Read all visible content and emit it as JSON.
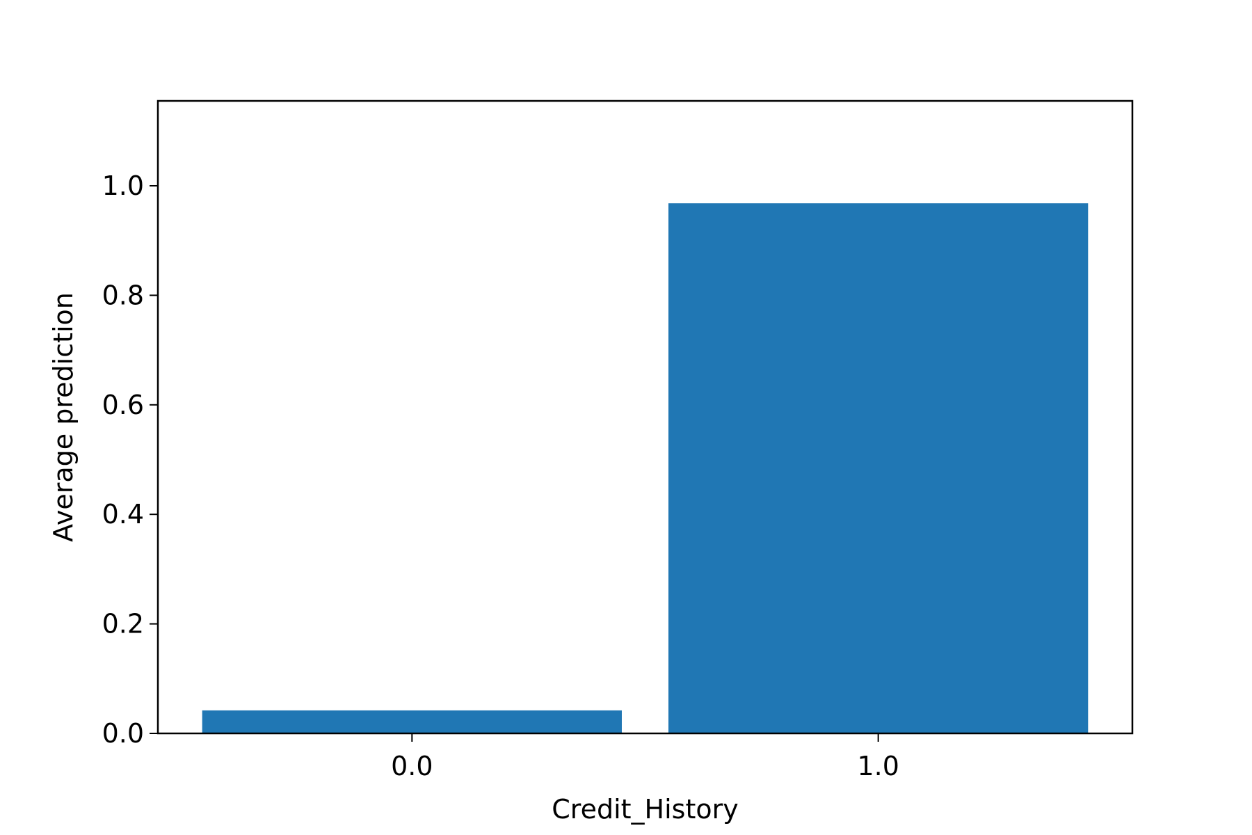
{
  "chart_data": {
    "type": "bar",
    "categories": [
      "0.0",
      "1.0"
    ],
    "values": [
      0.042,
      0.968
    ],
    "title": "",
    "xlabel": "Credit_History",
    "ylabel": "Average prediction",
    "ylim": [
      0,
      1.155
    ],
    "yticks": [
      "0.0",
      "0.2",
      "0.4",
      "0.6",
      "0.8",
      "1.0"
    ],
    "ytick_values": [
      0,
      0.2,
      0.4,
      0.6,
      0.8,
      1.0
    ],
    "grid": false,
    "legend": "none",
    "bar_color": "#2077b4"
  }
}
